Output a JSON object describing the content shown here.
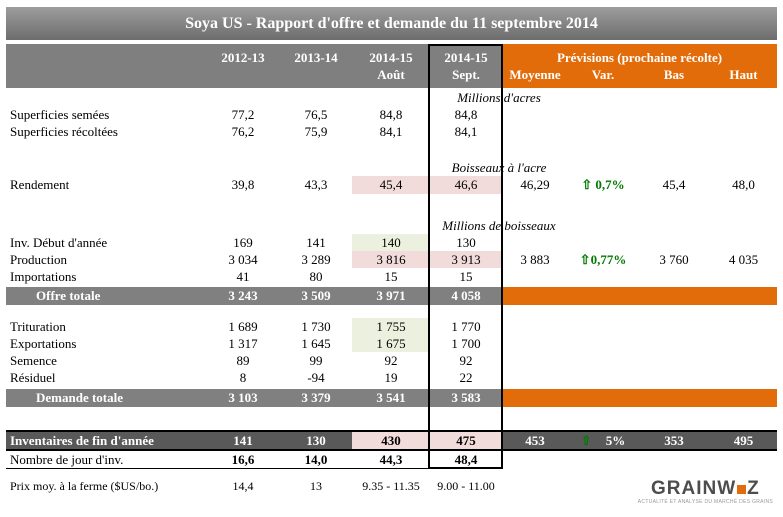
{
  "title": "Soya US - Rapport d'offre et demande du 11 septembre 2014",
  "header": {
    "years": [
      {
        "l1": "2012-13",
        "l2": ""
      },
      {
        "l1": "2013-14",
        "l2": ""
      },
      {
        "l1": "2014-15",
        "l2": "Août"
      },
      {
        "l1": "2014-15",
        "l2": "Sept."
      }
    ],
    "previsions_title": "Prévisions (prochaine récolte)",
    "previsions_cols": [
      "Moyenne",
      "Var.",
      "Bas",
      "Haut"
    ]
  },
  "units": {
    "acres": "Millions d'acres",
    "boisseaux_acre": "Boisseaux à l'acre",
    "boisseaux": "Millions de boisseaux"
  },
  "rows": {
    "semees": {
      "label": "Superficies semées",
      "v": [
        "77,2",
        "76,5",
        "84,8",
        "84,8"
      ]
    },
    "recoltees": {
      "label": "Superficies récoltées",
      "v": [
        "76,2",
        "75,9",
        "84,1",
        "84,1"
      ]
    },
    "rendement": {
      "label": "Rendement",
      "v": [
        "39,8",
        "43,3",
        "45,4",
        "46,6"
      ],
      "arrow": "⇧",
      "prev": [
        "46,29",
        "0,7%",
        "45,4",
        "48,0"
      ]
    },
    "inv_debut": {
      "label": "Inv. Début d'année",
      "v": [
        "169",
        "141",
        "140",
        "130"
      ]
    },
    "production": {
      "label": "Production",
      "v": [
        "3 034",
        "3 289",
        "3 816",
        "3 913"
      ],
      "arrow": "⇧",
      "prev": [
        "3 883",
        "0,77%",
        "3 760",
        "4 035"
      ]
    },
    "importations": {
      "label": "Importations",
      "v": [
        "41",
        "80",
        "15",
        "15"
      ]
    },
    "offre_totale": {
      "label": "Offre totale",
      "v": [
        "3 243",
        "3 509",
        "3 971",
        "4 058"
      ]
    },
    "trituration": {
      "label": "Trituration",
      "v": [
        "1 689",
        "1 730",
        "1 755",
        "1 770"
      ]
    },
    "exportations": {
      "label": "Exportations",
      "v": [
        "1 317",
        "1 645",
        "1 675",
        "1 700"
      ]
    },
    "semence": {
      "label": "Semence",
      "v": [
        "89",
        "99",
        "92",
        "92"
      ]
    },
    "residuel": {
      "label": "Résiduel",
      "v": [
        "8",
        "-94",
        "19",
        "22"
      ]
    },
    "demande_totale": {
      "label": "Demande totale",
      "v": [
        "3 103",
        "3 379",
        "3 541",
        "3 583"
      ]
    },
    "inventaires": {
      "label": "Inventaires de fin d'année",
      "v": [
        "141",
        "130",
        "430",
        "475"
      ],
      "arrow": "⇧",
      "prev": [
        "453",
        "5%",
        "353",
        "495"
      ]
    },
    "jours": {
      "label": "Nombre de jour d'inv.",
      "v": [
        "16,6",
        "14,0",
        "44,3",
        "48,4"
      ]
    },
    "prix": {
      "label": "Prix moy. à la ferme ($US/bo.)",
      "v": [
        "14,4",
        "13",
        "9.35 - 11.35",
        "9.00 - 11.00"
      ]
    }
  },
  "logo": {
    "part1": "GRAINW",
    "part2": "Z",
    "tagline": "ACTUALITÉ ET ANALYSE DU MARCHÉ DES GRAINS"
  },
  "colors": {
    "orange": "#E36C0A",
    "header_gray": "#7F7F7F",
    "total_gray": "#808080",
    "inventory_gray": "#595959",
    "highlight_pink": "#F2DCDB",
    "highlight_green": "#EBF1DE",
    "green_text": "#007A00"
  }
}
